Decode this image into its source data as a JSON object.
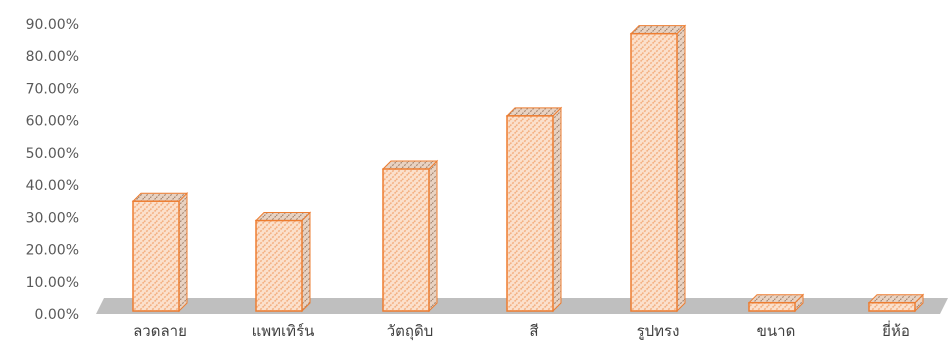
{
  "colors": {
    "bar_fill": "#fbe0cc",
    "bar_hatch": "#f4b183",
    "bar_stroke": "#ed7d31",
    "bar_side": "#c8c8c8",
    "floor": "#bfbfbf",
    "text": "#595959"
  },
  "chart_data": {
    "type": "bar",
    "style": "3d-column",
    "fill_pattern": "diagonal-hatch",
    "categories": [
      "ลวดลาย",
      "แพทเทิร์น",
      "วัตถุดิบ",
      "สี",
      "รูปทรง",
      "ขนาด",
      "ยี่ห้อ"
    ],
    "values": [
      35.0,
      29.0,
      45.0,
      61.5,
      87.0,
      3.5,
      3.5
    ],
    "value_format": "percent",
    "ylim": [
      0,
      90
    ],
    "y_ticks": [
      "0.00%",
      "10.00%",
      "20.00%",
      "30.00%",
      "40.00%",
      "50.00%",
      "60.00%",
      "70.00%",
      "80.00%",
      "90.00%"
    ],
    "y_tick_values": [
      0,
      10,
      20,
      30,
      40,
      50,
      60,
      70,
      80,
      90
    ],
    "title": "",
    "xlabel": "",
    "ylabel": "",
    "grid": false,
    "legend": "none"
  }
}
